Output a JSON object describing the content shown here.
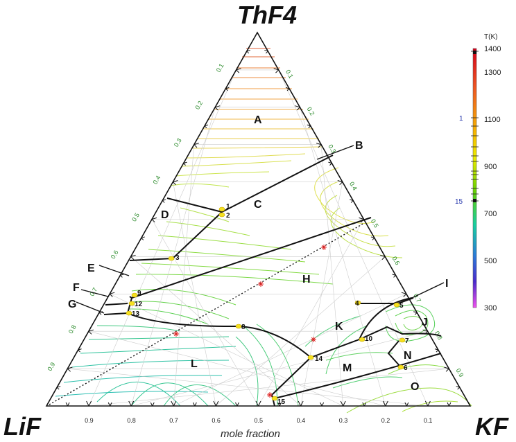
{
  "chart_data": {
    "type": "ternary phase diagram",
    "components": {
      "top": "ThF4",
      "left": "LiF",
      "right": "KF"
    },
    "axis_ticks": [
      0.1,
      0.2,
      0.3,
      0.4,
      0.5,
      0.6,
      0.7,
      0.8,
      0.9
    ],
    "bottom_axis_ticks": [
      0.9,
      0.8,
      0.7,
      0.6,
      0.5,
      0.4,
      0.3,
      0.2,
      0.1
    ],
    "xlabel": "mole fraction",
    "colorbar": {
      "title": "T(K)",
      "ticks": [
        1400,
        1300,
        1100,
        900,
        700,
        500,
        300
      ],
      "range": [
        300,
        1400
      ],
      "markers": [
        "1",
        "15"
      ]
    },
    "regions": [
      "A",
      "B",
      "C",
      "D",
      "E",
      "F",
      "G",
      "H",
      "I",
      "J",
      "K",
      "L",
      "M",
      "N",
      "O"
    ],
    "invariant_points": [
      "1",
      "2",
      "3",
      "4",
      "5",
      "6",
      "7",
      "8",
      "9",
      "10",
      "12",
      "13",
      "14",
      "15"
    ],
    "section_line": "dotted",
    "section_markers": 5
  }
}
